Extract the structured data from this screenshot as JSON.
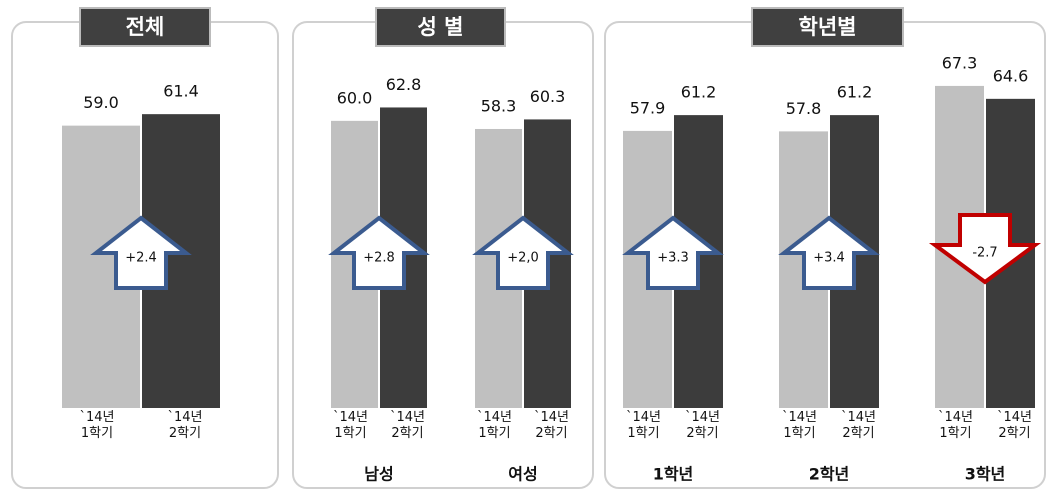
{
  "chart_data": [
    {
      "type": "bar",
      "title": "전체",
      "categories": [
        null
      ],
      "series": [
        {
          "name": "`14년\n1학기",
          "color": "#c0c0c0",
          "values": [
            59.0
          ],
          "value_labels": [
            "59.0"
          ]
        },
        {
          "name": "`14년\n2학기",
          "color": "#3c3c3c",
          "values": [
            61.4
          ],
          "value_labels": [
            "61.4"
          ]
        }
      ],
      "changes": [
        {
          "value": 2.4,
          "label": "+2.4"
        }
      ],
      "up_color": "#3b5b8f",
      "down_color": "#c00000",
      "ylim": [
        0,
        70
      ]
    },
    {
      "type": "bar",
      "title": "성 별",
      "categories": [
        "남성",
        "여성"
      ],
      "series": [
        {
          "name": "`14년\n1학기",
          "color": "#c0c0c0",
          "values": [
            60.0,
            58.3
          ],
          "value_labels": [
            "60.0",
            "58.3"
          ]
        },
        {
          "name": "`14년\n2학기",
          "color": "#3c3c3c",
          "values": [
            62.8,
            60.3
          ],
          "value_labels": [
            "62.8",
            "60.3"
          ]
        }
      ],
      "changes": [
        {
          "value": 2.8,
          "label": "+2.8"
        },
        {
          "value": 2.0,
          "label": "+2,0"
        }
      ],
      "up_color": "#3b5b8f",
      "down_color": "#c00000",
      "ylim": [
        0,
        70
      ]
    },
    {
      "type": "bar",
      "title": "학년별",
      "categories": [
        "1학년",
        "2학년",
        "3학년"
      ],
      "series": [
        {
          "name": "`14년\n1학기",
          "color": "#c0c0c0",
          "values": [
            57.9,
            57.8,
            67.3
          ],
          "value_labels": [
            "57.9",
            "57.8",
            "67.3"
          ]
        },
        {
          "name": "`14년\n2학기",
          "color": "#3c3c3c",
          "values": [
            61.2,
            61.2,
            64.6
          ],
          "value_labels": [
            "61.2",
            "61.2",
            "64.6"
          ]
        }
      ],
      "changes": [
        {
          "value": 3.3,
          "label": "+3.3"
        },
        {
          "value": 3.4,
          "label": "+3.4"
        },
        {
          "value": -2.7,
          "label": "-2.7"
        }
      ],
      "up_color": "#3b5b8f",
      "down_color": "#c00000",
      "ylim": [
        0,
        70
      ]
    }
  ]
}
